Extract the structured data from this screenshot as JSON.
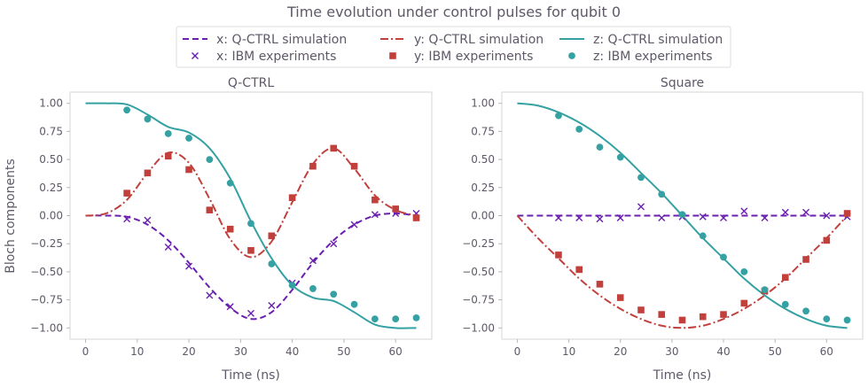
{
  "figure": {
    "title": "Time evolution under control pulses for qubit 0",
    "ylabel": "Bloch components",
    "colors": {
      "x": "#6a1fb0",
      "y": "#c2403c",
      "z": "#35a1a3",
      "text": "#5f5868"
    }
  },
  "legend": [
    {
      "key": "x",
      "kind": "line",
      "dash": "dashed",
      "label": "x: Q-CTRL simulation"
    },
    {
      "key": "y",
      "kind": "line",
      "dash": "dashdot",
      "label": "y: Q-CTRL simulation"
    },
    {
      "key": "z",
      "kind": "line",
      "dash": "solid",
      "label": "z: Q-CTRL simulation"
    },
    {
      "key": "x",
      "kind": "marker",
      "marker": "x",
      "label": "x: IBM experiments"
    },
    {
      "key": "y",
      "kind": "marker",
      "marker": "square",
      "label": "y: IBM experiments"
    },
    {
      "key": "z",
      "kind": "marker",
      "marker": "circle",
      "label": "z: IBM experiments"
    }
  ],
  "chart_data": [
    {
      "type": "line",
      "title": "Q-CTRL",
      "xlabel": "Time (ns)",
      "ylabel": "Bloch components",
      "xlim": [
        -3,
        67
      ],
      "ylim": [
        -1.1,
        1.1
      ],
      "xticks": [
        0,
        10,
        20,
        30,
        40,
        50,
        60
      ],
      "xtick_labels": [
        "0",
        "10",
        "20",
        "30",
        "40",
        "50",
        "60"
      ],
      "yticks": [
        1.0,
        0.75,
        0.5,
        0.25,
        0.0,
        -0.25,
        -0.5,
        -0.75,
        -1.0
      ],
      "ytick_labels": [
        "1.00",
        "0.75",
        "0.50",
        "0.25",
        "0.00",
        "−0.25",
        "−0.50",
        "−0.75",
        "−1.00"
      ],
      "grid": false,
      "simulation": {
        "x": [
          [
            0,
            0.0
          ],
          [
            4,
            0.0
          ],
          [
            8,
            -0.01
          ],
          [
            12,
            -0.08
          ],
          [
            16,
            -0.22
          ],
          [
            20,
            -0.42
          ],
          [
            24,
            -0.64
          ],
          [
            28,
            -0.82
          ],
          [
            32,
            -0.92
          ],
          [
            36,
            -0.86
          ],
          [
            40,
            -0.66
          ],
          [
            44,
            -0.42
          ],
          [
            48,
            -0.22
          ],
          [
            52,
            -0.08
          ],
          [
            56,
            0.0
          ],
          [
            60,
            0.02
          ],
          [
            64,
            0.0
          ]
        ],
        "y": [
          [
            0,
            0.0
          ],
          [
            4,
            0.02
          ],
          [
            8,
            0.14
          ],
          [
            12,
            0.38
          ],
          [
            16,
            0.56
          ],
          [
            20,
            0.47
          ],
          [
            24,
            0.15
          ],
          [
            28,
            -0.21
          ],
          [
            32,
            -0.37
          ],
          [
            36,
            -0.23
          ],
          [
            40,
            0.12
          ],
          [
            44,
            0.46
          ],
          [
            48,
            0.6
          ],
          [
            52,
            0.42
          ],
          [
            56,
            0.18
          ],
          [
            60,
            0.05
          ],
          [
            64,
            0.0
          ]
        ],
        "z": [
          [
            0,
            1.0
          ],
          [
            4,
            1.0
          ],
          [
            8,
            0.99
          ],
          [
            12,
            0.9
          ],
          [
            16,
            0.79
          ],
          [
            20,
            0.74
          ],
          [
            24,
            0.6
          ],
          [
            28,
            0.33
          ],
          [
            32,
            -0.05
          ],
          [
            36,
            -0.38
          ],
          [
            40,
            -0.62
          ],
          [
            44,
            -0.73
          ],
          [
            48,
            -0.76
          ],
          [
            52,
            -0.86
          ],
          [
            56,
            -0.97
          ],
          [
            60,
            -1.0
          ],
          [
            64,
            -1.0
          ]
        ]
      },
      "experiments": {
        "x": [
          [
            8,
            -0.03
          ],
          [
            12,
            -0.04
          ],
          [
            16,
            -0.28
          ],
          [
            20,
            -0.45
          ],
          [
            24,
            -0.71
          ],
          [
            28,
            -0.81
          ],
          [
            32,
            -0.87
          ],
          [
            36,
            -0.8
          ],
          [
            40,
            -0.6
          ],
          [
            44,
            -0.4
          ],
          [
            48,
            -0.25
          ],
          [
            52,
            -0.08
          ],
          [
            56,
            0.01
          ],
          [
            60,
            0.02
          ],
          [
            64,
            0.02
          ]
        ],
        "y": [
          [
            8,
            0.2
          ],
          [
            12,
            0.38
          ],
          [
            16,
            0.53
          ],
          [
            20,
            0.41
          ],
          [
            24,
            0.05
          ],
          [
            28,
            -0.12
          ],
          [
            32,
            -0.31
          ],
          [
            36,
            -0.18
          ],
          [
            40,
            0.16
          ],
          [
            44,
            0.44
          ],
          [
            48,
            0.6
          ],
          [
            52,
            0.44
          ],
          [
            56,
            0.14
          ],
          [
            60,
            0.06
          ],
          [
            64,
            -0.02
          ]
        ],
        "z": [
          [
            8,
            0.94
          ],
          [
            12,
            0.86
          ],
          [
            16,
            0.73
          ],
          [
            20,
            0.69
          ],
          [
            24,
            0.5
          ],
          [
            28,
            0.29
          ],
          [
            32,
            -0.07
          ],
          [
            36,
            -0.43
          ],
          [
            40,
            -0.62
          ],
          [
            44,
            -0.65
          ],
          [
            48,
            -0.7
          ],
          [
            52,
            -0.79
          ],
          [
            56,
            -0.92
          ],
          [
            60,
            -0.92
          ],
          [
            64,
            -0.91
          ]
        ]
      }
    },
    {
      "type": "line",
      "title": "Square",
      "xlabel": "Time (ns)",
      "xlim": [
        -3,
        67
      ],
      "ylim": [
        -1.1,
        1.1
      ],
      "xticks": [
        0,
        10,
        20,
        30,
        40,
        50,
        60
      ],
      "xtick_labels": [
        "0",
        "10",
        "20",
        "30",
        "40",
        "50",
        "60"
      ],
      "yticks": [
        1.0,
        0.75,
        0.5,
        0.25,
        0.0,
        -0.25,
        -0.5,
        -0.75,
        -1.0
      ],
      "ytick_labels": [
        "1.00",
        "0.75",
        "0.50",
        "0.25",
        "0.00",
        "−0.25",
        "−0.50",
        "−0.75",
        "−1.00"
      ],
      "grid": false,
      "simulation": {
        "x": [
          [
            0,
            0.0
          ],
          [
            8,
            0.0
          ],
          [
            16,
            0.0
          ],
          [
            24,
            0.0
          ],
          [
            32,
            0.0
          ],
          [
            40,
            0.0
          ],
          [
            48,
            0.0
          ],
          [
            56,
            0.0
          ],
          [
            64,
            0.0
          ]
        ],
        "y": [
          [
            0,
            0.0
          ],
          [
            4,
            -0.2
          ],
          [
            8,
            -0.38
          ],
          [
            12,
            -0.56
          ],
          [
            16,
            -0.71
          ],
          [
            20,
            -0.83
          ],
          [
            24,
            -0.92
          ],
          [
            28,
            -0.98
          ],
          [
            32,
            -1.0
          ],
          [
            36,
            -0.98
          ],
          [
            40,
            -0.92
          ],
          [
            44,
            -0.83
          ],
          [
            48,
            -0.71
          ],
          [
            52,
            -0.56
          ],
          [
            56,
            -0.38
          ],
          [
            60,
            -0.2
          ],
          [
            64,
            0.0
          ]
        ],
        "z": [
          [
            0,
            1.0
          ],
          [
            4,
            0.98
          ],
          [
            8,
            0.92
          ],
          [
            12,
            0.83
          ],
          [
            16,
            0.71
          ],
          [
            20,
            0.56
          ],
          [
            24,
            0.38
          ],
          [
            28,
            0.2
          ],
          [
            32,
            0.0
          ],
          [
            36,
            -0.2
          ],
          [
            40,
            -0.38
          ],
          [
            44,
            -0.56
          ],
          [
            48,
            -0.71
          ],
          [
            52,
            -0.83
          ],
          [
            56,
            -0.92
          ],
          [
            60,
            -0.98
          ],
          [
            64,
            -1.0
          ]
        ]
      },
      "experiments": {
        "x": [
          [
            8,
            -0.02
          ],
          [
            12,
            -0.02
          ],
          [
            16,
            -0.03
          ],
          [
            20,
            -0.02
          ],
          [
            24,
            0.08
          ],
          [
            28,
            -0.02
          ],
          [
            32,
            -0.01
          ],
          [
            36,
            -0.01
          ],
          [
            40,
            -0.02
          ],
          [
            44,
            0.04
          ],
          [
            48,
            -0.02
          ],
          [
            52,
            0.03
          ],
          [
            56,
            0.03
          ],
          [
            60,
            0.0
          ],
          [
            64,
            -0.01
          ]
        ],
        "y": [
          [
            8,
            -0.35
          ],
          [
            12,
            -0.48
          ],
          [
            16,
            -0.61
          ],
          [
            20,
            -0.73
          ],
          [
            24,
            -0.84
          ],
          [
            28,
            -0.88
          ],
          [
            32,
            -0.93
          ],
          [
            36,
            -0.9
          ],
          [
            40,
            -0.88
          ],
          [
            44,
            -0.78
          ],
          [
            48,
            -0.67
          ],
          [
            52,
            -0.55
          ],
          [
            56,
            -0.39
          ],
          [
            60,
            -0.22
          ],
          [
            64,
            0.02
          ]
        ],
        "z": [
          [
            8,
            0.89
          ],
          [
            12,
            0.77
          ],
          [
            16,
            0.61
          ],
          [
            20,
            0.52
          ],
          [
            24,
            0.34
          ],
          [
            28,
            0.19
          ],
          [
            32,
            0.01
          ],
          [
            36,
            -0.18
          ],
          [
            40,
            -0.37
          ],
          [
            44,
            -0.5
          ],
          [
            48,
            -0.66
          ],
          [
            52,
            -0.79
          ],
          [
            56,
            -0.85
          ],
          [
            60,
            -0.92
          ],
          [
            64,
            -0.93
          ]
        ]
      }
    }
  ]
}
